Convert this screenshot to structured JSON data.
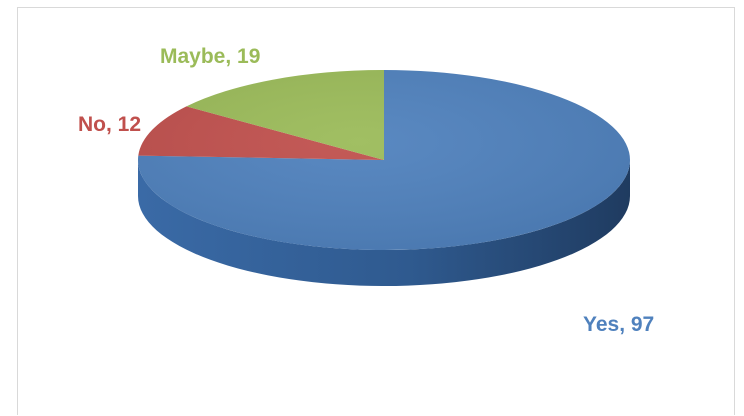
{
  "chart_data": {
    "type": "pie",
    "title": "",
    "style": "3d",
    "legend": "none",
    "slices": [
      {
        "label": "Yes",
        "value": 97,
        "color": "#4F81BD",
        "data_label": "Yes, 97"
      },
      {
        "label": "No",
        "value": 12,
        "color": "#C0504D",
        "data_label": "No, 12"
      },
      {
        "label": "Maybe",
        "value": 19,
        "color": "#9BBB59",
        "data_label": "Maybe, 19"
      }
    ]
  }
}
